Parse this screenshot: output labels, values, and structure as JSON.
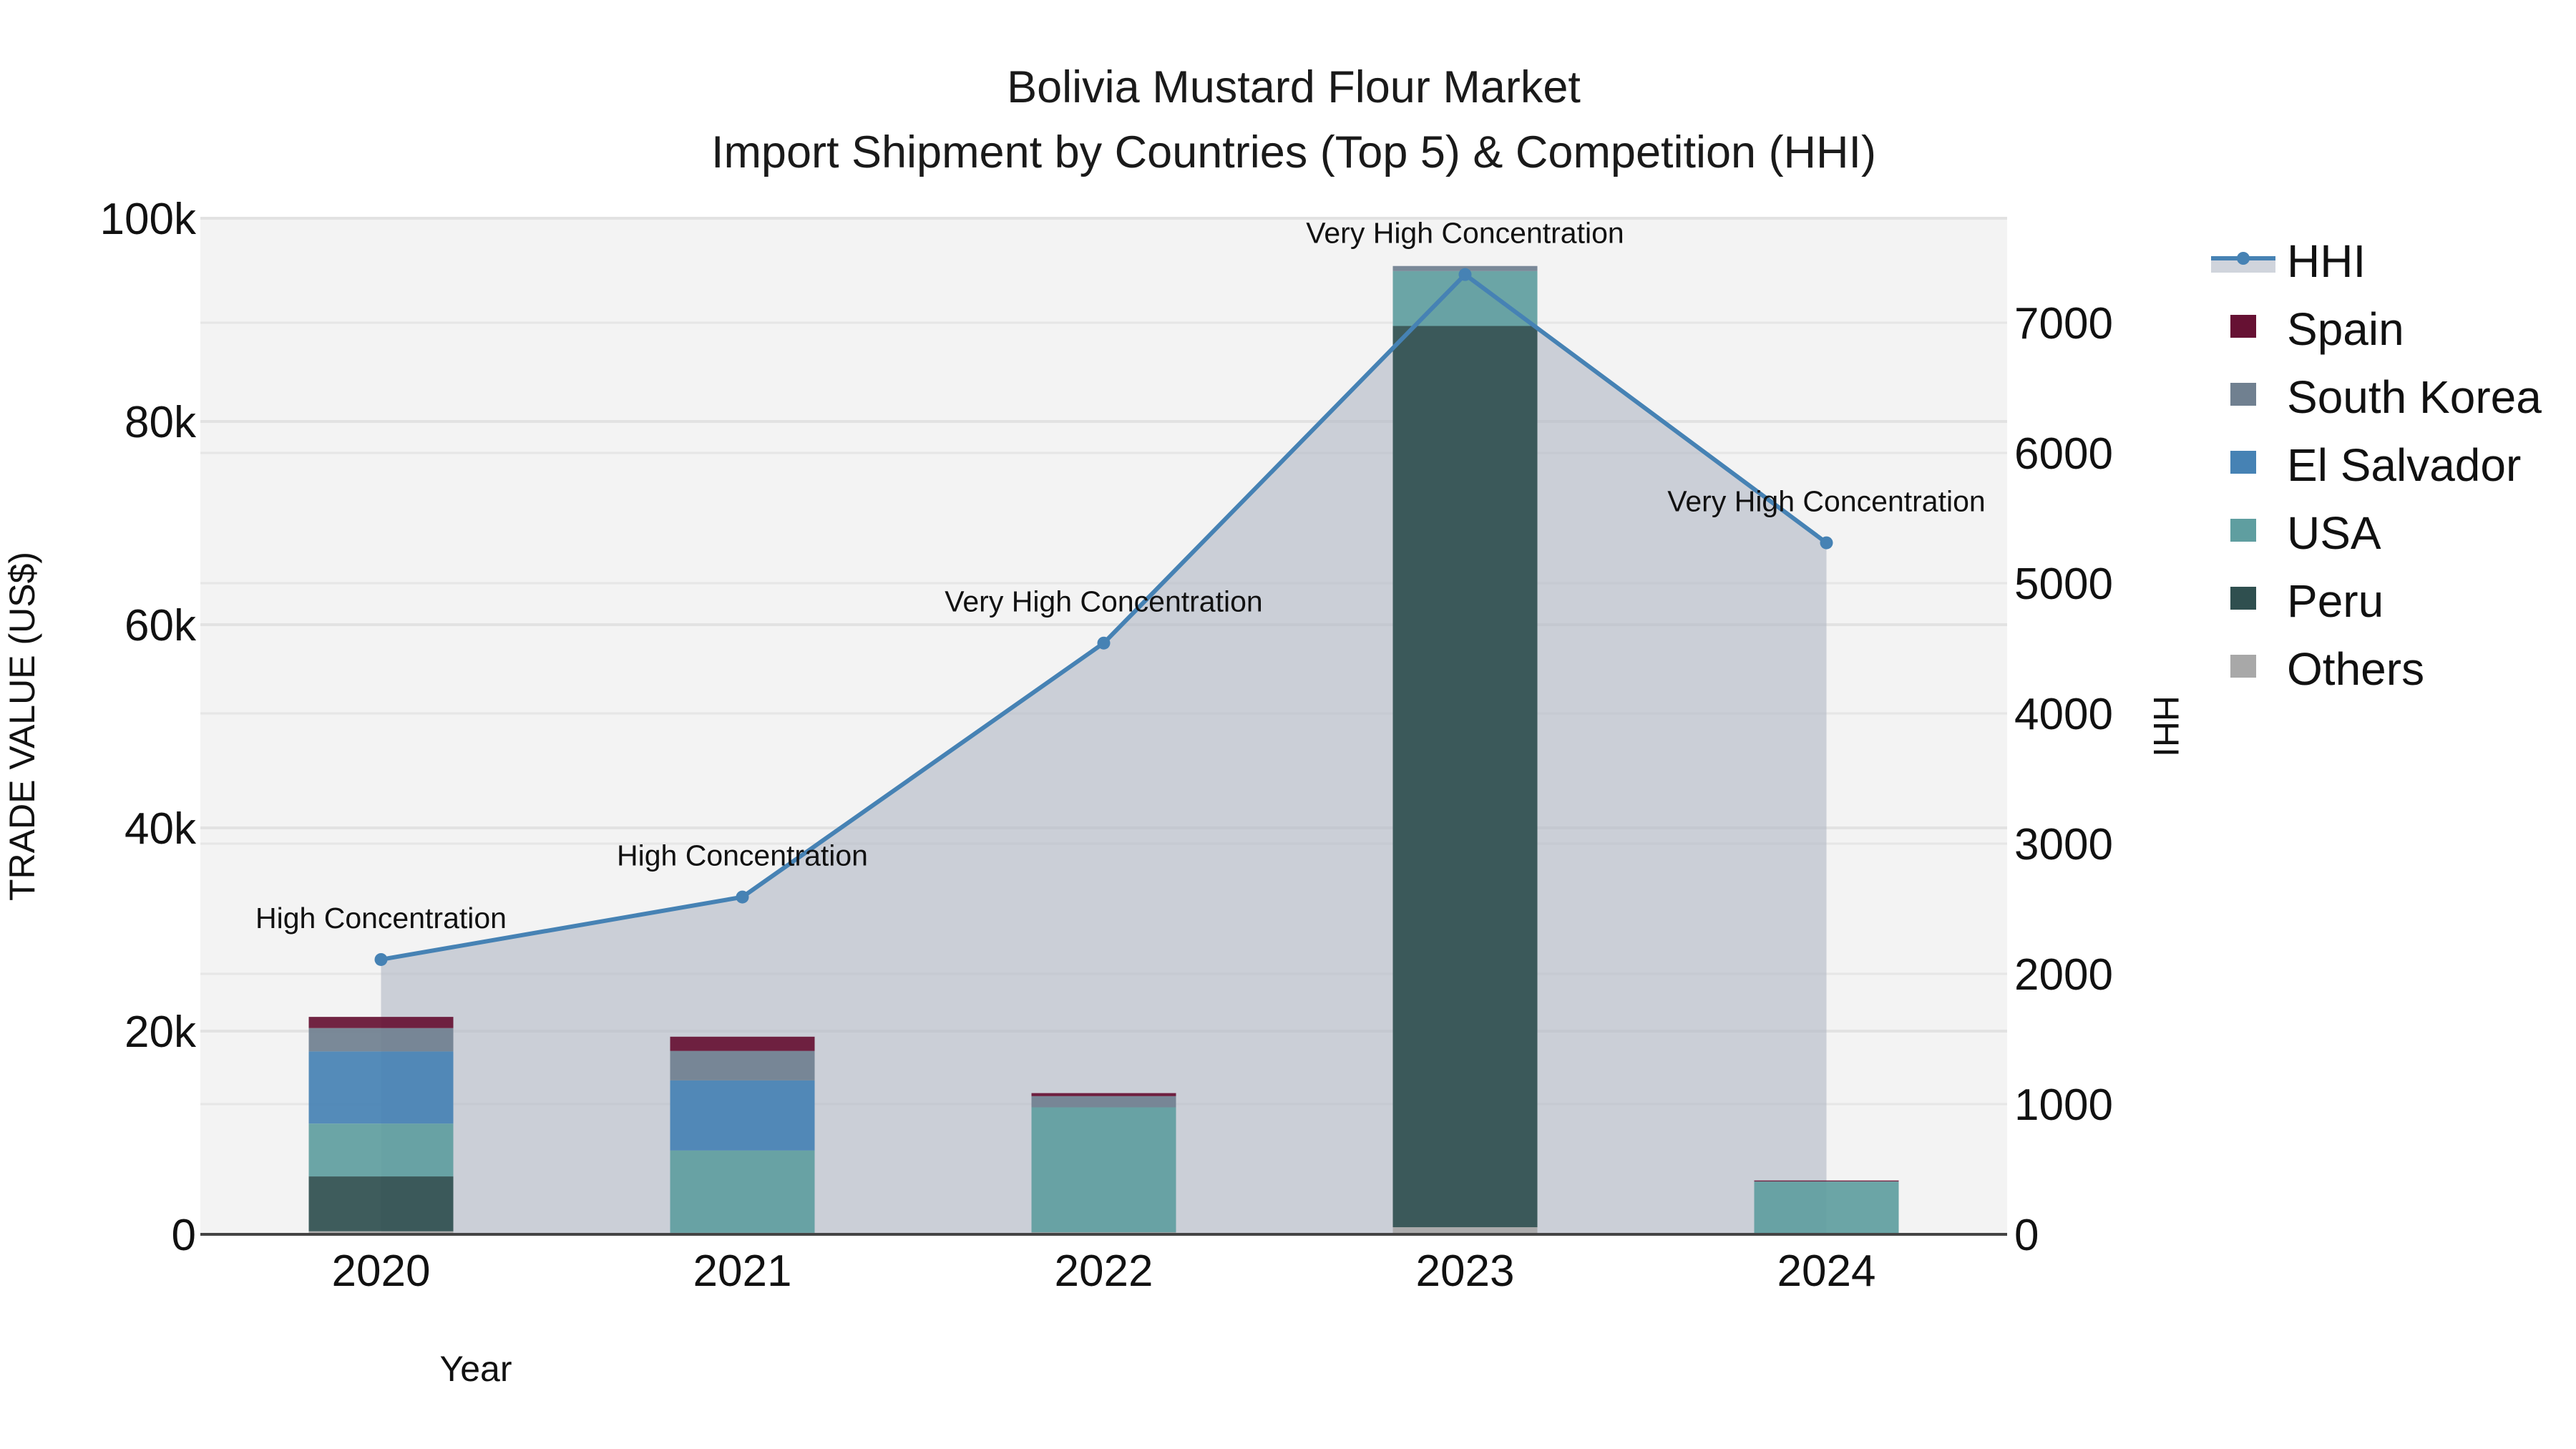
{
  "chart_data": {
    "type": "bar",
    "title": "Bolivia Mustard Flour Market",
    "subtitle": "Import Shipment by Countries (Top 5) & Competition (HHI)",
    "xlabel": "Year",
    "ylabel": "TRADE VALUE (US$)",
    "y2label": "HHI",
    "categories": [
      "2020",
      "2021",
      "2022",
      "2023",
      "2024"
    ],
    "barmode": "stack",
    "ylim": [
      0,
      100000
    ],
    "y2lim": [
      0,
      7800
    ],
    "yticks": [
      0,
      20000,
      40000,
      60000,
      80000,
      100000
    ],
    "ytick_labels": [
      "0",
      "20k",
      "40k",
      "60k",
      "80k",
      "100k"
    ],
    "y2ticks": [
      0,
      1000,
      2000,
      3000,
      4000,
      5000,
      6000,
      7000
    ],
    "y2tick_labels": [
      "0",
      "1000",
      "2000",
      "3000",
      "4000",
      "5000",
      "6000",
      "7000"
    ],
    "series": [
      {
        "name": "Others",
        "color": "#a8a8a8",
        "values": [
          300,
          150,
          200,
          700,
          0
        ]
      },
      {
        "name": "Peru",
        "color": "#2f4f4f",
        "values": [
          5400,
          0,
          0,
          88700,
          0
        ]
      },
      {
        "name": "USA",
        "color": "#5f9ea0",
        "values": [
          5200,
          8100,
          12300,
          5400,
          5200
        ]
      },
      {
        "name": "El Salvador",
        "color": "#4682b4",
        "values": [
          7100,
          6900,
          0,
          0,
          0
        ]
      },
      {
        "name": "South Korea",
        "color": "#708090",
        "values": [
          2300,
          2900,
          1100,
          500,
          0
        ]
      },
      {
        "name": "Spain",
        "color": "#661133",
        "values": [
          1100,
          1400,
          300,
          0,
          100
        ]
      }
    ],
    "line_series": {
      "name": "HHI",
      "axis": "y2",
      "color": "#4682b4",
      "fill_color": "#b0b8c4",
      "values": [
        2110,
        2590,
        4540,
        7370,
        5310
      ],
      "annotations": [
        "High Concentration",
        "High Concentration",
        "Very High Concentration",
        "Very High Concentration",
        "Very High Concentration"
      ]
    },
    "legend": {
      "position": "right",
      "entries": [
        "HHI",
        "Spain",
        "South Korea",
        "El Salvador",
        "USA",
        "Peru",
        "Others"
      ]
    },
    "grid": true,
    "plot_bgcolor": "#f3f3f3"
  }
}
